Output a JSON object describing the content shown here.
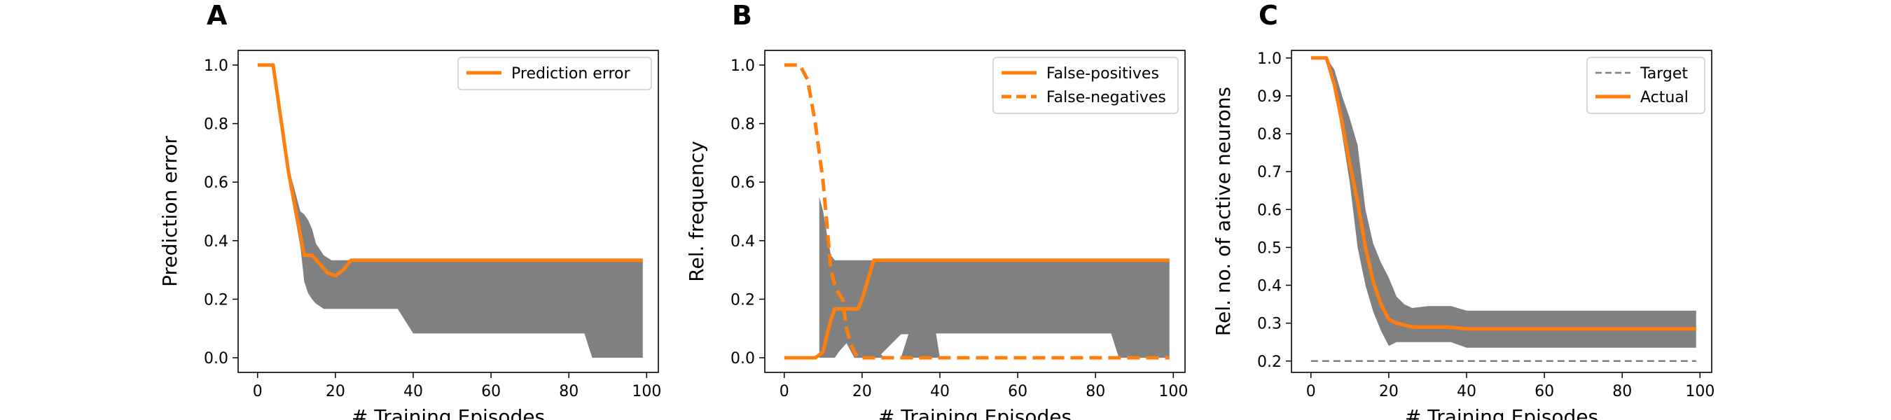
{
  "chart_data": [
    {
      "type": "line",
      "panel": "A",
      "xlabel": "# Training Episodes",
      "ylabel": "Prediction error",
      "xlim": [
        -5,
        103
      ],
      "ylim": [
        -0.05,
        1.05
      ],
      "xticks": [
        0,
        20,
        40,
        60,
        80,
        100
      ],
      "yticks": [
        0.0,
        0.2,
        0.4,
        0.6,
        0.8,
        1.0
      ],
      "xtick_labels": [
        "0",
        "20",
        "40",
        "60",
        "80",
        "100"
      ],
      "ytick_labels": [
        "0.0",
        "0.2",
        "0.4",
        "0.6",
        "0.8",
        "1.0"
      ],
      "legend_position": "top-right",
      "grid": false,
      "series": [
        {
          "name": "Prediction error",
          "style": "solid",
          "color": "#ff7f0e",
          "x": [
            0,
            4,
            8,
            12,
            14,
            16,
            18,
            20,
            22,
            24,
            30,
            40,
            60,
            80,
            99
          ],
          "values": [
            1.0,
            1.0,
            0.63,
            0.35,
            0.35,
            0.32,
            0.29,
            0.28,
            0.3,
            0.333,
            0.333,
            0.333,
            0.333,
            0.333,
            0.333
          ]
        }
      ],
      "bands": [
        {
          "color": "#808080",
          "x": [
            0,
            4,
            8,
            11,
            12,
            13,
            14,
            15,
            17,
            19,
            20,
            22,
            25,
            30,
            36,
            40,
            50,
            60,
            70,
            80,
            84,
            86,
            90,
            99
          ],
          "upper": [
            1.0,
            1.0,
            0.65,
            0.5,
            0.49,
            0.47,
            0.44,
            0.39,
            0.35,
            0.333,
            0.333,
            0.333,
            0.333,
            0.333,
            0.333,
            0.333,
            0.333,
            0.333,
            0.333,
            0.333,
            0.333,
            0.333,
            0.333,
            0.333
          ],
          "lower": [
            1.0,
            1.0,
            0.6,
            0.38,
            0.26,
            0.22,
            0.2,
            0.185,
            0.167,
            0.167,
            0.167,
            0.167,
            0.167,
            0.167,
            0.167,
            0.083,
            0.083,
            0.083,
            0.083,
            0.083,
            0.083,
            0.0,
            0.0,
            0.0
          ]
        }
      ]
    },
    {
      "type": "line",
      "panel": "B",
      "xlabel": "# Training Episodes",
      "ylabel": "Rel. frequency",
      "xlim": [
        -5,
        103
      ],
      "ylim": [
        -0.05,
        1.05
      ],
      "xticks": [
        0,
        20,
        40,
        60,
        80,
        100
      ],
      "yticks": [
        0.0,
        0.2,
        0.4,
        0.6,
        0.8,
        1.0
      ],
      "xtick_labels": [
        "0",
        "20",
        "40",
        "60",
        "80",
        "100"
      ],
      "ytick_labels": [
        "0.0",
        "0.2",
        "0.4",
        "0.6",
        "0.8",
        "1.0"
      ],
      "legend_position": "top-right",
      "grid": false,
      "series": [
        {
          "name": "False-positives",
          "style": "solid",
          "color": "#ff7f0e",
          "x": [
            0,
            8,
            10,
            11,
            12,
            13,
            14,
            17,
            19,
            20,
            23,
            30,
            40,
            60,
            80,
            99
          ],
          "values": [
            0.0,
            0.0,
            0.02,
            0.08,
            0.13,
            0.167,
            0.167,
            0.167,
            0.167,
            0.2,
            0.333,
            0.333,
            0.333,
            0.333,
            0.333,
            0.333
          ]
        },
        {
          "name": "False-negatives",
          "style": "dashed",
          "color": "#ff7f0e",
          "x": [
            0,
            4,
            6,
            8,
            10,
            11,
            12,
            13,
            14,
            15,
            16,
            17,
            18,
            19,
            20,
            22,
            30,
            40,
            60,
            80,
            99
          ],
          "values": [
            1.0,
            1.0,
            0.95,
            0.8,
            0.6,
            0.45,
            0.3,
            0.25,
            0.22,
            0.2,
            0.1,
            0.05,
            0.02,
            0.0,
            0.0,
            0.0,
            0.0,
            0.0,
            0.0,
            0.0,
            0.0
          ]
        }
      ],
      "bands": [
        {
          "color": "#808080",
          "x": [
            9,
            10,
            11,
            12,
            13,
            14,
            16,
            18,
            20,
            22,
            24,
            30,
            40,
            60,
            80,
            84,
            86,
            99
          ],
          "upper": [
            0.55,
            0.5,
            0.42,
            0.35,
            0.333,
            0.333,
            0.333,
            0.333,
            0.333,
            0.333,
            0.333,
            0.333,
            0.333,
            0.333,
            0.333,
            0.333,
            0.333,
            0.333
          ],
          "lower": [
            0.0,
            0.0,
            0.0,
            0.0,
            0.0,
            0.02,
            0.05,
            0.0,
            0.0,
            0.0,
            0.0,
            0.08,
            0.083,
            0.083,
            0.083,
            0.083,
            0.0,
            0.0
          ]
        },
        {
          "color": "#808080",
          "x": [
            18,
            20,
            21,
            22,
            24,
            26,
            30,
            34,
            38,
            40
          ],
          "upper": [
            0.167,
            0.167,
            0.12,
            0.08,
            0.02,
            0.0,
            0.0,
            0.167,
            0.167,
            0.0
          ],
          "lower": [
            0.0,
            0.0,
            0.0,
            0.0,
            0.0,
            0.0,
            0.0,
            0.0,
            0.0,
            0.0
          ]
        }
      ]
    },
    {
      "type": "line",
      "panel": "C",
      "xlabel": "# Training Episodes",
      "ylabel": "Rel. no. of active neurons",
      "xlim": [
        -5,
        103
      ],
      "ylim": [
        0.17,
        1.02
      ],
      "xticks": [
        0,
        20,
        40,
        60,
        80,
        100
      ],
      "yticks": [
        0.2,
        0.3,
        0.4,
        0.5,
        0.6,
        0.7,
        0.8,
        0.9,
        1.0
      ],
      "xtick_labels": [
        "0",
        "20",
        "40",
        "60",
        "80",
        "100"
      ],
      "ytick_labels": [
        "0.2",
        "0.3",
        "0.4",
        "0.5",
        "0.6",
        "0.7",
        "0.8",
        "0.9",
        "1.0"
      ],
      "legend_position": "top-right",
      "grid": false,
      "series": [
        {
          "name": "Target",
          "style": "dashed-thin",
          "color": "#808080",
          "x": [
            0,
            99
          ],
          "values": [
            0.2,
            0.2
          ]
        },
        {
          "name": "Actual",
          "style": "solid",
          "color": "#ff7f0e",
          "x": [
            0,
            4,
            6,
            8,
            10,
            12,
            14,
            16,
            18,
            20,
            22,
            24,
            26,
            30,
            35,
            38,
            40,
            50,
            60,
            70,
            80,
            90,
            99
          ],
          "values": [
            1.0,
            1.0,
            0.93,
            0.83,
            0.72,
            0.62,
            0.5,
            0.41,
            0.35,
            0.31,
            0.3,
            0.295,
            0.29,
            0.29,
            0.29,
            0.287,
            0.285,
            0.285,
            0.285,
            0.285,
            0.285,
            0.285,
            0.285
          ]
        }
      ],
      "bands": [
        {
          "color": "#808080",
          "x": [
            0,
            4,
            6,
            8,
            10,
            12,
            14,
            16,
            18,
            20,
            22,
            24,
            26,
            30,
            36,
            40,
            50,
            60,
            70,
            80,
            90,
            99
          ],
          "upper": [
            1.0,
            1.0,
            0.97,
            0.9,
            0.84,
            0.77,
            0.6,
            0.51,
            0.46,
            0.42,
            0.37,
            0.35,
            0.34,
            0.345,
            0.345,
            0.333,
            0.333,
            0.333,
            0.333,
            0.333,
            0.333,
            0.333
          ],
          "lower": [
            1.0,
            1.0,
            0.92,
            0.8,
            0.67,
            0.5,
            0.4,
            0.33,
            0.28,
            0.24,
            0.25,
            0.25,
            0.25,
            0.25,
            0.25,
            0.235,
            0.235,
            0.235,
            0.235,
            0.235,
            0.235,
            0.235
          ]
        }
      ]
    }
  ]
}
